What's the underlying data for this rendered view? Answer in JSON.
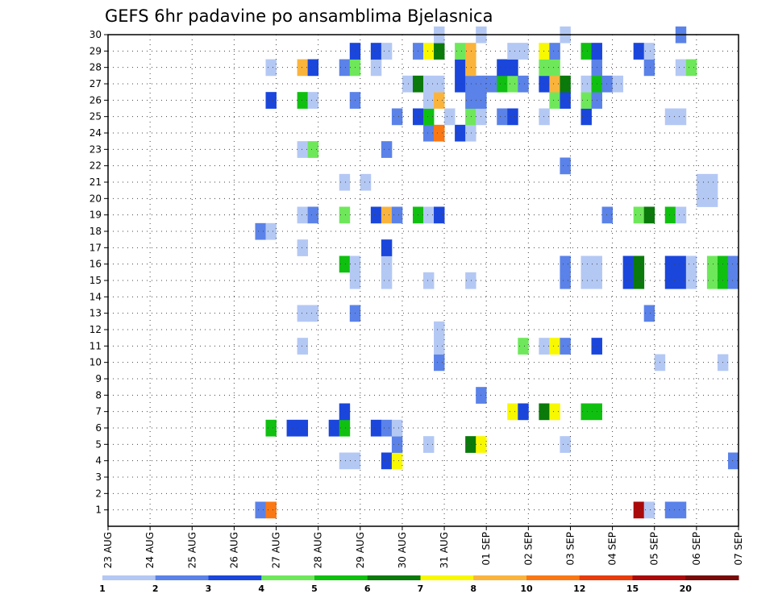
{
  "chart_data": {
    "type": "heatmap",
    "title": "GEFS 6hr padavine po ansamblima Bjelasnica",
    "xlabel": "",
    "ylabel": "",
    "x_tick_labels": [
      "23 AUG",
      "24 AUG",
      "25 AUG",
      "26 AUG",
      "27 AUG",
      "28 AUG",
      "29 AUG",
      "30 AUG",
      "31 AUG",
      "01 SEP",
      "02 SEP",
      "03 SEP",
      "04 SEP",
      "05 SEP",
      "06 SEP",
      "07 SEP"
    ],
    "x_range_days": [
      0,
      15
    ],
    "y_range_members": [
      0,
      30
    ],
    "y_tick_labels": [
      "1",
      "2",
      "3",
      "4",
      "5",
      "6",
      "7",
      "8",
      "9",
      "10",
      "11",
      "12",
      "13",
      "14",
      "15",
      "16",
      "17",
      "18",
      "19",
      "20",
      "21",
      "22",
      "23",
      "24",
      "25",
      "26",
      "27",
      "28",
      "29",
      "30"
    ],
    "grid": true,
    "legend": {
      "placement": "bottom",
      "boundaries": [
        "1",
        "2",
        "3",
        "4",
        "5",
        "6",
        "7",
        "8",
        "10",
        "12",
        "15",
        "20"
      ],
      "colors": [
        "#b4c8f4",
        "#5a82e8",
        "#1a46dc",
        "#6ee85a",
        "#10c010",
        "#0a7a0a",
        "#f8f800",
        "#fab43c",
        "#fa7814",
        "#e83c0a",
        "#aa0a0a",
        "#780a0a"
      ]
    },
    "cells": [
      {
        "m": 1,
        "d": 3.625,
        "c": "#5a82e8"
      },
      {
        "m": 1,
        "d": 3.875,
        "c": "#fa7814"
      },
      {
        "m": 1,
        "d": 12.625,
        "c": "#aa0a0a"
      },
      {
        "m": 1,
        "d": 12.875,
        "c": "#b4c8f4"
      },
      {
        "m": 1,
        "d": 13.375,
        "c": "#5a82e8"
      },
      {
        "m": 1,
        "d": 13.625,
        "c": "#5a82e8"
      },
      {
        "m": 4,
        "d": 5.625,
        "c": "#b4c8f4"
      },
      {
        "m": 4,
        "d": 5.875,
        "c": "#b4c8f4"
      },
      {
        "m": 4,
        "d": 6.625,
        "c": "#1a46dc"
      },
      {
        "m": 4,
        "d": 6.875,
        "c": "#f8f800"
      },
      {
        "m": 4,
        "d": 14.875,
        "c": "#5a82e8"
      },
      {
        "m": 5,
        "d": 6.875,
        "c": "#5a82e8"
      },
      {
        "m": 5,
        "d": 7.625,
        "c": "#b4c8f4"
      },
      {
        "m": 5,
        "d": 8.625,
        "c": "#0a7a0a"
      },
      {
        "m": 5,
        "d": 8.875,
        "c": "#f8f800"
      },
      {
        "m": 5,
        "d": 10.875,
        "c": "#b4c8f4"
      },
      {
        "m": 6,
        "d": 3.875,
        "c": "#10c010"
      },
      {
        "m": 6,
        "d": 4.375,
        "c": "#1a46dc"
      },
      {
        "m": 6,
        "d": 4.625,
        "c": "#1a46dc"
      },
      {
        "m": 6,
        "d": 5.375,
        "c": "#1a46dc"
      },
      {
        "m": 6,
        "d": 5.625,
        "c": "#10c010"
      },
      {
        "m": 6,
        "d": 6.375,
        "c": "#1a46dc"
      },
      {
        "m": 6,
        "d": 6.625,
        "c": "#5a82e8"
      },
      {
        "m": 6,
        "d": 6.875,
        "c": "#b4c8f4"
      },
      {
        "m": 7,
        "d": 5.625,
        "c": "#1a46dc"
      },
      {
        "m": 7,
        "d": 9.625,
        "c": "#f8f800"
      },
      {
        "m": 7,
        "d": 9.875,
        "c": "#1a46dc"
      },
      {
        "m": 7,
        "d": 10.375,
        "c": "#0a7a0a"
      },
      {
        "m": 7,
        "d": 10.625,
        "c": "#f8f800"
      },
      {
        "m": 7,
        "d": 11.375,
        "c": "#10c010"
      },
      {
        "m": 7,
        "d": 11.625,
        "c": "#10c010"
      },
      {
        "m": 8,
        "d": 8.875,
        "c": "#5a82e8"
      },
      {
        "m": 10,
        "d": 7.875,
        "c": "#5a82e8"
      },
      {
        "m": 10,
        "d": 13.125,
        "c": "#b4c8f4"
      },
      {
        "m": 10,
        "d": 14.625,
        "c": "#b4c8f4"
      },
      {
        "m": 11,
        "d": 4.625,
        "c": "#b4c8f4"
      },
      {
        "m": 11,
        "d": 7.875,
        "c": "#b4c8f4"
      },
      {
        "m": 11,
        "d": 9.875,
        "c": "#6ee85a"
      },
      {
        "m": 11,
        "d": 10.375,
        "c": "#b4c8f4"
      },
      {
        "m": 11,
        "d": 10.625,
        "c": "#f8f800"
      },
      {
        "m": 11,
        "d": 10.875,
        "c": "#5a82e8"
      },
      {
        "m": 11,
        "d": 11.625,
        "c": "#1a46dc"
      },
      {
        "m": 12,
        "d": 7.875,
        "c": "#b4c8f4"
      },
      {
        "m": 13,
        "d": 4.625,
        "c": "#b4c8f4"
      },
      {
        "m": 13,
        "d": 4.875,
        "c": "#b4c8f4"
      },
      {
        "m": 13,
        "d": 5.875,
        "c": "#5a82e8"
      },
      {
        "m": 13,
        "d": 12.875,
        "c": "#5a82e8"
      },
      {
        "m": 15,
        "d": 5.875,
        "c": "#b4c8f4"
      },
      {
        "m": 15,
        "d": 6.625,
        "c": "#b4c8f4"
      },
      {
        "m": 15,
        "d": 7.625,
        "c": "#b4c8f4"
      },
      {
        "m": 15,
        "d": 8.625,
        "c": "#b4c8f4"
      },
      {
        "m": 15,
        "d": 10.875,
        "c": "#5a82e8"
      },
      {
        "m": 15,
        "d": 11.375,
        "c": "#b4c8f4"
      },
      {
        "m": 15,
        "d": 11.625,
        "c": "#b4c8f4"
      },
      {
        "m": 15,
        "d": 12.375,
        "c": "#1a46dc"
      },
      {
        "m": 15,
        "d": 12.625,
        "c": "#0a7a0a"
      },
      {
        "m": 15,
        "d": 13.375,
        "c": "#1a46dc"
      },
      {
        "m": 15,
        "d": 13.625,
        "c": "#1a46dc"
      },
      {
        "m": 15,
        "d": 13.875,
        "c": "#b4c8f4"
      },
      {
        "m": 15,
        "d": 14.375,
        "c": "#6ee85a"
      },
      {
        "m": 15,
        "d": 14.625,
        "c": "#10c010"
      },
      {
        "m": 15,
        "d": 14.875,
        "c": "#5a82e8"
      },
      {
        "m": 16,
        "d": 5.625,
        "c": "#10c010"
      },
      {
        "m": 16,
        "d": 5.875,
        "c": "#b4c8f4"
      },
      {
        "m": 16,
        "d": 6.625,
        "c": "#b4c8f4"
      },
      {
        "m": 16,
        "d": 10.875,
        "c": "#5a82e8"
      },
      {
        "m": 16,
        "d": 11.375,
        "c": "#b4c8f4"
      },
      {
        "m": 16,
        "d": 11.625,
        "c": "#b4c8f4"
      },
      {
        "m": 16,
        "d": 12.375,
        "c": "#1a46dc"
      },
      {
        "m": 16,
        "d": 12.625,
        "c": "#0a7a0a"
      },
      {
        "m": 16,
        "d": 13.375,
        "c": "#1a46dc"
      },
      {
        "m": 16,
        "d": 13.625,
        "c": "#1a46dc"
      },
      {
        "m": 16,
        "d": 13.875,
        "c": "#b4c8f4"
      },
      {
        "m": 16,
        "d": 14.375,
        "c": "#6ee85a"
      },
      {
        "m": 16,
        "d": 14.625,
        "c": "#10c010"
      },
      {
        "m": 16,
        "d": 14.875,
        "c": "#5a82e8"
      },
      {
        "m": 17,
        "d": 4.625,
        "c": "#b4c8f4"
      },
      {
        "m": 17,
        "d": 6.625,
        "c": "#1a46dc"
      },
      {
        "m": 18,
        "d": 3.625,
        "c": "#5a82e8"
      },
      {
        "m": 18,
        "d": 3.875,
        "c": "#b4c8f4"
      },
      {
        "m": 19,
        "d": 4.625,
        "c": "#b4c8f4"
      },
      {
        "m": 19,
        "d": 4.875,
        "c": "#5a82e8"
      },
      {
        "m": 19,
        "d": 5.625,
        "c": "#6ee85a"
      },
      {
        "m": 19,
        "d": 6.375,
        "c": "#1a46dc"
      },
      {
        "m": 19,
        "d": 6.625,
        "c": "#fab43c"
      },
      {
        "m": 19,
        "d": 6.875,
        "c": "#5a82e8"
      },
      {
        "m": 19,
        "d": 7.375,
        "c": "#10c010"
      },
      {
        "m": 19,
        "d": 7.625,
        "c": "#b4c8f4"
      },
      {
        "m": 19,
        "d": 7.875,
        "c": "#1a46dc"
      },
      {
        "m": 19,
        "d": 11.875,
        "c": "#5a82e8"
      },
      {
        "m": 19,
        "d": 12.625,
        "c": "#6ee85a"
      },
      {
        "m": 19,
        "d": 12.875,
        "c": "#0a7a0a"
      },
      {
        "m": 19,
        "d": 13.375,
        "c": "#10c010"
      },
      {
        "m": 19,
        "d": 13.625,
        "c": "#b4c8f4"
      },
      {
        "m": 20,
        "d": 14.125,
        "c": "#b4c8f4"
      },
      {
        "m": 20,
        "d": 14.375,
        "c": "#b4c8f4"
      },
      {
        "m": 21,
        "d": 5.625,
        "c": "#b4c8f4"
      },
      {
        "m": 21,
        "d": 6.125,
        "c": "#b4c8f4"
      },
      {
        "m": 21,
        "d": 14.125,
        "c": "#b4c8f4"
      },
      {
        "m": 21,
        "d": 14.375,
        "c": "#b4c8f4"
      },
      {
        "m": 22,
        "d": 10.875,
        "c": "#5a82e8"
      },
      {
        "m": 23,
        "d": 4.625,
        "c": "#b4c8f4"
      },
      {
        "m": 23,
        "d": 4.875,
        "c": "#6ee85a"
      },
      {
        "m": 23,
        "d": 6.625,
        "c": "#5a82e8"
      },
      {
        "m": 24,
        "d": 7.625,
        "c": "#5a82e8"
      },
      {
        "m": 24,
        "d": 7.875,
        "c": "#fa7814"
      },
      {
        "m": 24,
        "d": 8.375,
        "c": "#1a46dc"
      },
      {
        "m": 24,
        "d": 8.625,
        "c": "#b4c8f4"
      },
      {
        "m": 25,
        "d": 6.875,
        "c": "#5a82e8"
      },
      {
        "m": 25,
        "d": 7.375,
        "c": "#1a46dc"
      },
      {
        "m": 25,
        "d": 7.625,
        "c": "#10c010"
      },
      {
        "m": 25,
        "d": 8.125,
        "c": "#b4c8f4"
      },
      {
        "m": 25,
        "d": 8.625,
        "c": "#6ee85a"
      },
      {
        "m": 25,
        "d": 8.875,
        "c": "#b4c8f4"
      },
      {
        "m": 25,
        "d": 9.375,
        "c": "#5a82e8"
      },
      {
        "m": 25,
        "d": 9.625,
        "c": "#1a46dc"
      },
      {
        "m": 25,
        "d": 10.375,
        "c": "#b4c8f4"
      },
      {
        "m": 25,
        "d": 11.375,
        "c": "#1a46dc"
      },
      {
        "m": 25,
        "d": 13.375,
        "c": "#b4c8f4"
      },
      {
        "m": 25,
        "d": 13.625,
        "c": "#b4c8f4"
      },
      {
        "m": 26,
        "d": 3.875,
        "c": "#1a46dc"
      },
      {
        "m": 26,
        "d": 4.625,
        "c": "#10c010"
      },
      {
        "m": 26,
        "d": 4.875,
        "c": "#b4c8f4"
      },
      {
        "m": 26,
        "d": 5.875,
        "c": "#5a82e8"
      },
      {
        "m": 26,
        "d": 7.625,
        "c": "#b4c8f4"
      },
      {
        "m": 26,
        "d": 7.875,
        "c": "#fab43c"
      },
      {
        "m": 26,
        "d": 8.625,
        "c": "#5a82e8"
      },
      {
        "m": 26,
        "d": 8.875,
        "c": "#5a82e8"
      },
      {
        "m": 26,
        "d": 10.625,
        "c": "#6ee85a"
      },
      {
        "m": 26,
        "d": 10.875,
        "c": "#1a46dc"
      },
      {
        "m": 26,
        "d": 11.375,
        "c": "#6ee85a"
      },
      {
        "m": 26,
        "d": 11.625,
        "c": "#5a82e8"
      },
      {
        "m": 27,
        "d": 7.125,
        "c": "#b4c8f4"
      },
      {
        "m": 27,
        "d": 7.375,
        "c": "#0a7a0a"
      },
      {
        "m": 27,
        "d": 7.625,
        "c": "#b4c8f4"
      },
      {
        "m": 27,
        "d": 7.875,
        "c": "#b4c8f4"
      },
      {
        "m": 27,
        "d": 8.375,
        "c": "#1a46dc"
      },
      {
        "m": 27,
        "d": 8.625,
        "c": "#5a82e8"
      },
      {
        "m": 27,
        "d": 8.875,
        "c": "#5a82e8"
      },
      {
        "m": 27,
        "d": 9.125,
        "c": "#5a82e8"
      },
      {
        "m": 27,
        "d": 9.375,
        "c": "#10c010"
      },
      {
        "m": 27,
        "d": 9.625,
        "c": "#6ee85a"
      },
      {
        "m": 27,
        "d": 9.875,
        "c": "#5a82e8"
      },
      {
        "m": 27,
        "d": 10.375,
        "c": "#1a46dc"
      },
      {
        "m": 27,
        "d": 10.625,
        "c": "#fab43c"
      },
      {
        "m": 27,
        "d": 10.875,
        "c": "#0a7a0a"
      },
      {
        "m": 27,
        "d": 11.375,
        "c": "#b4c8f4"
      },
      {
        "m": 27,
        "d": 11.625,
        "c": "#10c010"
      },
      {
        "m": 27,
        "d": 11.875,
        "c": "#5a82e8"
      },
      {
        "m": 27,
        "d": 12.125,
        "c": "#b4c8f4"
      },
      {
        "m": 28,
        "d": 3.875,
        "c": "#b4c8f4"
      },
      {
        "m": 28,
        "d": 4.625,
        "c": "#fab43c"
      },
      {
        "m": 28,
        "d": 4.875,
        "c": "#1a46dc"
      },
      {
        "m": 28,
        "d": 5.625,
        "c": "#5a82e8"
      },
      {
        "m": 28,
        "d": 5.875,
        "c": "#6ee85a"
      },
      {
        "m": 28,
        "d": 6.375,
        "c": "#b4c8f4"
      },
      {
        "m": 28,
        "d": 8.375,
        "c": "#1a46dc"
      },
      {
        "m": 28,
        "d": 8.625,
        "c": "#fab43c"
      },
      {
        "m": 28,
        "d": 9.375,
        "c": "#1a46dc"
      },
      {
        "m": 28,
        "d": 9.625,
        "c": "#1a46dc"
      },
      {
        "m": 28,
        "d": 10.375,
        "c": "#6ee85a"
      },
      {
        "m": 28,
        "d": 10.625,
        "c": "#6ee85a"
      },
      {
        "m": 28,
        "d": 11.625,
        "c": "#5a82e8"
      },
      {
        "m": 28,
        "d": 12.875,
        "c": "#5a82e8"
      },
      {
        "m": 28,
        "d": 13.625,
        "c": "#b4c8f4"
      },
      {
        "m": 28,
        "d": 13.875,
        "c": "#6ee85a"
      },
      {
        "m": 29,
        "d": 5.875,
        "c": "#1a46dc"
      },
      {
        "m": 29,
        "d": 6.375,
        "c": "#1a46dc"
      },
      {
        "m": 29,
        "d": 6.625,
        "c": "#b4c8f4"
      },
      {
        "m": 29,
        "d": 7.375,
        "c": "#5a82e8"
      },
      {
        "m": 29,
        "d": 7.625,
        "c": "#f8f800"
      },
      {
        "m": 29,
        "d": 7.875,
        "c": "#0a7a0a"
      },
      {
        "m": 29,
        "d": 8.375,
        "c": "#6ee85a"
      },
      {
        "m": 29,
        "d": 8.625,
        "c": "#fab43c"
      },
      {
        "m": 29,
        "d": 9.625,
        "c": "#b4c8f4"
      },
      {
        "m": 29,
        "d": 9.875,
        "c": "#b4c8f4"
      },
      {
        "m": 29,
        "d": 10.375,
        "c": "#f8f800"
      },
      {
        "m": 29,
        "d": 10.625,
        "c": "#5a82e8"
      },
      {
        "m": 29,
        "d": 11.375,
        "c": "#10c010"
      },
      {
        "m": 29,
        "d": 11.625,
        "c": "#1a46dc"
      },
      {
        "m": 29,
        "d": 12.625,
        "c": "#1a46dc"
      },
      {
        "m": 29,
        "d": 12.875,
        "c": "#b4c8f4"
      },
      {
        "m": 30,
        "d": 7.875,
        "c": "#b4c8f4"
      },
      {
        "m": 30,
        "d": 8.875,
        "c": "#b4c8f4"
      },
      {
        "m": 30,
        "d": 10.875,
        "c": "#b4c8f4"
      },
      {
        "m": 30,
        "d": 13.625,
        "c": "#5a82e8"
      }
    ]
  }
}
